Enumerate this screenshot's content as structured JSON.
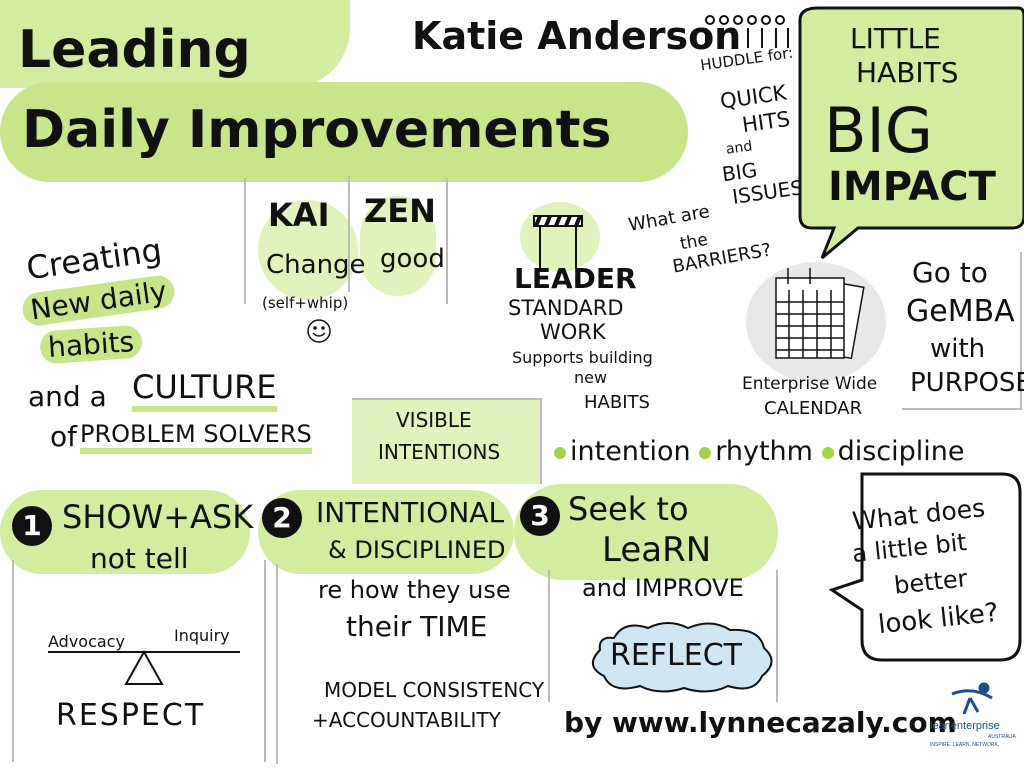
{
  "title": {
    "line1": "Leading",
    "line2": "Daily Improvements"
  },
  "author": "Katie Anderson",
  "huddle": {
    "intro": "HUDDLE for:",
    "quick": "QUICK",
    "hits": "HITS",
    "and": "and",
    "big": "BIG",
    "issues": "ISSUES"
  },
  "big_impact": {
    "little": "LITTLE",
    "habits": "HABITS",
    "big": "BIG",
    "impact": "IMPACT"
  },
  "kaizen": {
    "kai": "KAI",
    "zen": "ZEN",
    "change": "Change",
    "good": "good",
    "self_whip": "(self+whip)"
  },
  "habits": {
    "creating": "Creating",
    "new_daily": "New daily",
    "habits": "habits",
    "and_a": "and a",
    "culture": "CULTURE",
    "of": "of",
    "problem_solvers": "PROBLEM SOLVERS"
  },
  "barriers": {
    "l1": "What are",
    "l2": "the",
    "l3": "BARRIERS?"
  },
  "leader": {
    "l1": "LEADER",
    "l2": "STANDARD",
    "l3": "WORK",
    "l4": "Supports building",
    "l5": "new",
    "l6": "HABITS"
  },
  "calendar": {
    "l1": "Enterprise Wide",
    "l2": "CALENDAR"
  },
  "gemba": {
    "l1": "Go to",
    "l2": "GeMBA",
    "l3": "with",
    "l4": "PURPOSE"
  },
  "visible": {
    "l1": "VISIBLE",
    "l2": "INTENTIONS"
  },
  "ird": [
    "intention",
    "rhythm",
    "discipline"
  ],
  "s1": {
    "num": "1",
    "l1": "SHOW+ASK",
    "l2": "not tell",
    "advocacy": "Advocacy",
    "inquiry": "Inquiry",
    "respect": "RESPECT"
  },
  "s2": {
    "num": "2",
    "l1": "INTENTIONAL",
    "l2": "& DISCIPLINED",
    "l3": "re how they use",
    "l4": "their TIME",
    "l5": "MODEL CONSISTENCY",
    "l6": "+ACCOUNTABILITY"
  },
  "s3": {
    "num": "3",
    "l1": "Seek to",
    "l2": "LeaRN",
    "l3": "and IMPROVE",
    "reflect": "REFLECT",
    "byline": "by www.lynnecazaly.com"
  },
  "question": {
    "l1": "What does",
    "l2": "a little bit",
    "l3": "better",
    "l4": "look like?"
  },
  "logo": {
    "name": "leanenterprise",
    "sub": "AUSTRALIA",
    "tagline": "INSPIRE. LEARN. NETWORK."
  },
  "colors": {
    "accent": "#c8e58a",
    "accent_light": "#d4ec9f",
    "ink": "#111111"
  }
}
